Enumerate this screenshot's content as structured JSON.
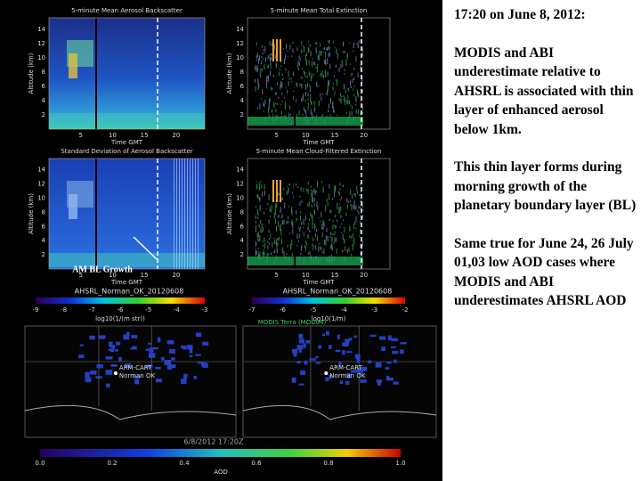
{
  "slide": {
    "heading": "17:20 on June 8, 2012:",
    "paragraphs": [
      "MODIS and ABI underestimate relative to AHSRL is associated with thin layer of enhanced aerosol below 1km.",
      "This thin layer forms during morning growth of the planetary boundary layer (BL)",
      "Same true for June 24, 26 July 01,03  low AOD cases where MODIS and ABI underestimates AHSRL AOD"
    ]
  },
  "panels": [
    {
      "title": "5-minute Mean Aerosol Backscatter",
      "ylabel": "Altitude (km)",
      "xlabel": "Time GMT",
      "yticks": [
        2,
        4,
        6,
        8,
        10,
        12,
        14
      ],
      "xticks": [
        5,
        10,
        15,
        20
      ]
    },
    {
      "title": "5-minute Mean Total Extinction",
      "ylabel": "Altitude (km)",
      "xlabel": "Time GMT",
      "yticks": [
        2,
        4,
        6,
        8,
        10,
        12,
        14
      ],
      "xticks": [
        5,
        10,
        15,
        20
      ]
    },
    {
      "title": "Standard Deviation of Aerosol Backscatter",
      "ylabel": "Altitude (km)",
      "xlabel": "Time GMT",
      "yticks": [
        2,
        4,
        6,
        8,
        10,
        12,
        14
      ],
      "xticks": [
        5,
        10,
        15,
        20
      ]
    },
    {
      "title": "5-minute Mean Cloud-Filtered Extinction",
      "ylabel": "Altitude (km)",
      "xlabel": "Time GMT",
      "yticks": [
        2,
        4,
        6,
        8,
        10,
        12,
        14
      ],
      "xticks": [
        5,
        10,
        15,
        20
      ]
    }
  ],
  "annotation": "AM BL Growth",
  "colorbars": [
    {
      "label": "AHSRL_Norman_OK_20120608",
      "ticks": [
        -9,
        -8,
        -7,
        -6,
        -5,
        -4,
        -3
      ],
      "unit": "log10(1/(m str))"
    },
    {
      "label": "AHSRL_Norman_OK_20120608",
      "ticks": [
        -7,
        -6,
        -5,
        -4,
        -3,
        -2
      ],
      "unit": "log10(1/m)"
    }
  ],
  "maps": [
    {
      "site": "ARM-CART",
      "city": "Norman OK"
    },
    {
      "title": "MODIS Terra (MOD04)",
      "site": "ARM-CART",
      "city": "Norman OK"
    }
  ],
  "timestamp": "6/8/2012 17:20Z",
  "aod_bar": {
    "label": "AOD",
    "ticks": [
      {
        "value": 0,
        "label": "0.0"
      },
      0.2,
      0.4,
      0.6,
      0.8,
      {
        "value": 1,
        "label": "1.0"
      }
    ]
  }
}
